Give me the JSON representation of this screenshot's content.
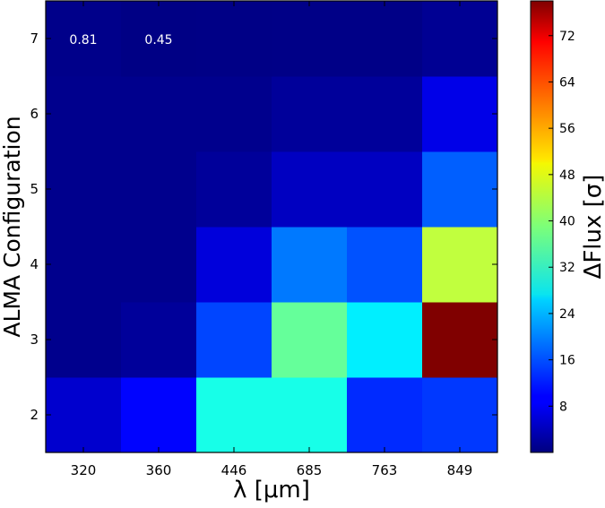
{
  "chart_data": {
    "type": "heatmap",
    "x_categories": [
      "320",
      "360",
      "446",
      "685",
      "763",
      "849"
    ],
    "y_categories": [
      "2",
      "3",
      "4",
      "5",
      "6",
      "7"
    ],
    "rows": [
      {
        "y": "2",
        "values": [
          6,
          10,
          31,
          31,
          13,
          14
        ]
      },
      {
        "y": "3",
        "values": [
          1,
          2,
          15,
          37,
          28,
          78
        ]
      },
      {
        "y": "4",
        "values": [
          1,
          1,
          7,
          19,
          16,
          44
        ]
      },
      {
        "y": "5",
        "values": [
          1,
          1,
          2,
          5,
          5,
          17
        ]
      },
      {
        "y": "6",
        "values": [
          1,
          1,
          1,
          2,
          2,
          8
        ]
      },
      {
        "y": "7",
        "values": [
          0.81,
          0.45,
          0.5,
          0.6,
          0.6,
          1.5
        ]
      }
    ],
    "annotations": [
      {
        "x": "320",
        "y": "7",
        "text": "0.81"
      },
      {
        "x": "360",
        "y": "7",
        "text": "0.45"
      }
    ],
    "xlabel": "λ [μm]",
    "ylabel": "ALMA Configuration",
    "colorbar": {
      "label": "ΔFlux [σ]",
      "range": [
        0,
        78
      ],
      "ticks": [
        "8",
        "16",
        "24",
        "32",
        "40",
        "48",
        "56",
        "64",
        "72"
      ],
      "colormap": "jet"
    }
  }
}
